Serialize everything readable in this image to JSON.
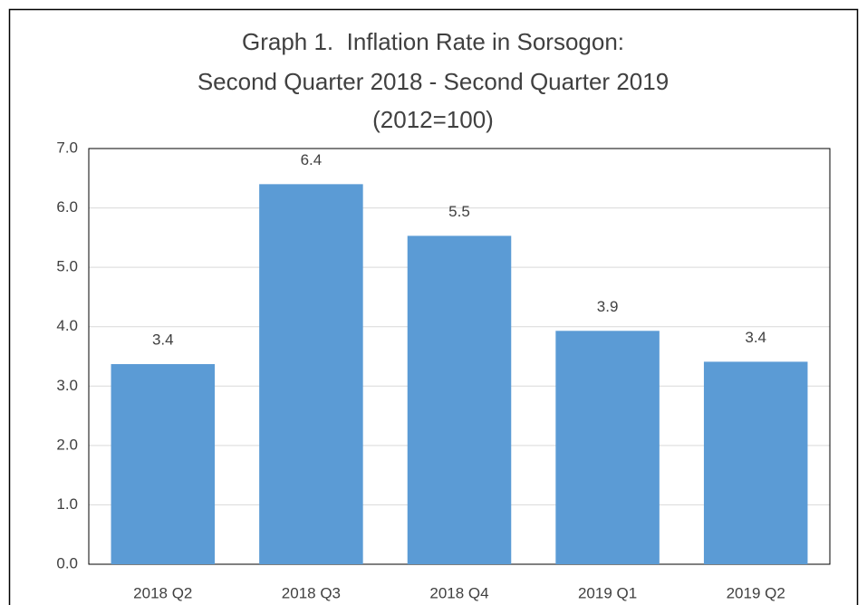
{
  "chart_data": {
    "type": "bar",
    "title": [
      "Graph 1.  Inflation Rate in Sorsogon:",
      "Second Quarter 2018 - Second Quarter 2019",
      "(2012=100)"
    ],
    "categories": [
      "2018 Q2",
      "2018 Q3",
      "2018 Q4",
      "2019 Q1",
      "2019 Q2"
    ],
    "values": [
      3.37,
      6.4,
      5.53,
      3.93,
      3.41
    ],
    "value_labels": [
      "3.4",
      "6.4",
      "5.5",
      "3.9",
      "3.4"
    ],
    "color": "#5b9bd5",
    "ylim": [
      0,
      7
    ],
    "yticks": [
      {
        "value": 0,
        "label": "0.0"
      },
      {
        "value": 1,
        "label": "1.0"
      },
      {
        "value": 2,
        "label": "2.0"
      },
      {
        "value": 3,
        "label": "3.0"
      },
      {
        "value": 4,
        "label": "4.0"
      },
      {
        "value": 5,
        "label": "5.0"
      },
      {
        "value": 6,
        "label": "6.0"
      },
      {
        "value": 7,
        "label": "7.0"
      }
    ],
    "grid": true
  }
}
